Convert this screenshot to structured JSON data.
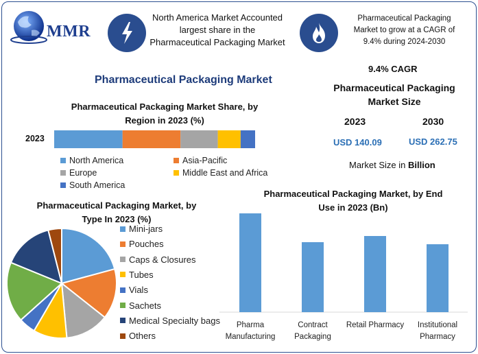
{
  "brand": {
    "logo_text": "MMR"
  },
  "header": {
    "box1_text": [
      "North America Market Accounted",
      "largest share in the",
      "Pharmaceutical Packaging Market"
    ],
    "box2_text": [
      "Pharmaceutical Packaging",
      "Market to grow at a CAGR of",
      "9.4% during 2024-2030"
    ],
    "icon1": "lightning-icon",
    "icon2": "flame-icon"
  },
  "main_title": "Pharmaceutical Packaging Market",
  "market_size": {
    "cagr": "9.4% CAGR",
    "title": [
      "Pharmaceutical Packaging",
      "Market Size"
    ],
    "year1": "2023",
    "year2": "2030",
    "value1": "USD 140.09",
    "value2": "USD 262.75",
    "unit_prefix": "Market Size in ",
    "unit_bold": "Billion"
  },
  "colors": {
    "blue": "#5b9bd5",
    "orange": "#ed7d31",
    "gray": "#a5a5a5",
    "yellow": "#ffc000",
    "darkblue": "#4472c4",
    "green": "#70ad47",
    "navy": "#264478",
    "brown": "#9e480e"
  },
  "chart_data": [
    {
      "type": "bar",
      "orientation": "horizontal-stacked",
      "title": [
        "Pharmaceutical Packaging Market Share, by",
        "Region in 2023 (%)"
      ],
      "categories": [
        "2023"
      ],
      "series": [
        {
          "name": "North America",
          "values": [
            33
          ],
          "color": "#5b9bd5"
        },
        {
          "name": "Asia-Pacific",
          "values": [
            28
          ],
          "color": "#ed7d31"
        },
        {
          "name": "Europe",
          "values": [
            18
          ],
          "color": "#a5a5a5"
        },
        {
          "name": "Middle East and Africa",
          "values": [
            11
          ],
          "color": "#ffc000"
        },
        {
          "name": "South America",
          "values": [
            7
          ],
          "color": "#4472c4"
        }
      ],
      "legend": "bottom"
    },
    {
      "type": "pie",
      "title": [
        "Pharmaceutical Packaging Market, by",
        "Type In 2023 (%)"
      ],
      "slices": [
        {
          "label": "Mini-jars",
          "value": 21,
          "color": "#5b9bd5"
        },
        {
          "label": "Pouches",
          "value": 15,
          "color": "#ed7d31"
        },
        {
          "label": "Caps & Closures",
          "value": 13,
          "color": "#a5a5a5"
        },
        {
          "label": "Tubes",
          "value": 10,
          "color": "#ffc000"
        },
        {
          "label": "Vials",
          "value": 5,
          "color": "#4472c4"
        },
        {
          "label": "Sachets",
          "value": 18,
          "color": "#70ad47"
        },
        {
          "label": "Medical Specialty bags",
          "value": 15,
          "color": "#264478"
        },
        {
          "label": "Others",
          "value": 4,
          "color": "#9e480e"
        }
      ],
      "legend": "right"
    },
    {
      "type": "bar",
      "title": [
        "Pharmaceutical Packaging Market, by End",
        "Use in 2023 (Bn)"
      ],
      "categories": [
        [
          "Pharma",
          "Manufacturing"
        ],
        [
          "Contract",
          "Packaging"
        ],
        [
          "Retail Pharmacy"
        ],
        [
          "Institutional",
          "Pharmacy"
        ]
      ],
      "values": [
        48,
        34,
        37,
        33
      ],
      "color": "#5b9bd5",
      "ylim": [
        0,
        50
      ]
    }
  ]
}
